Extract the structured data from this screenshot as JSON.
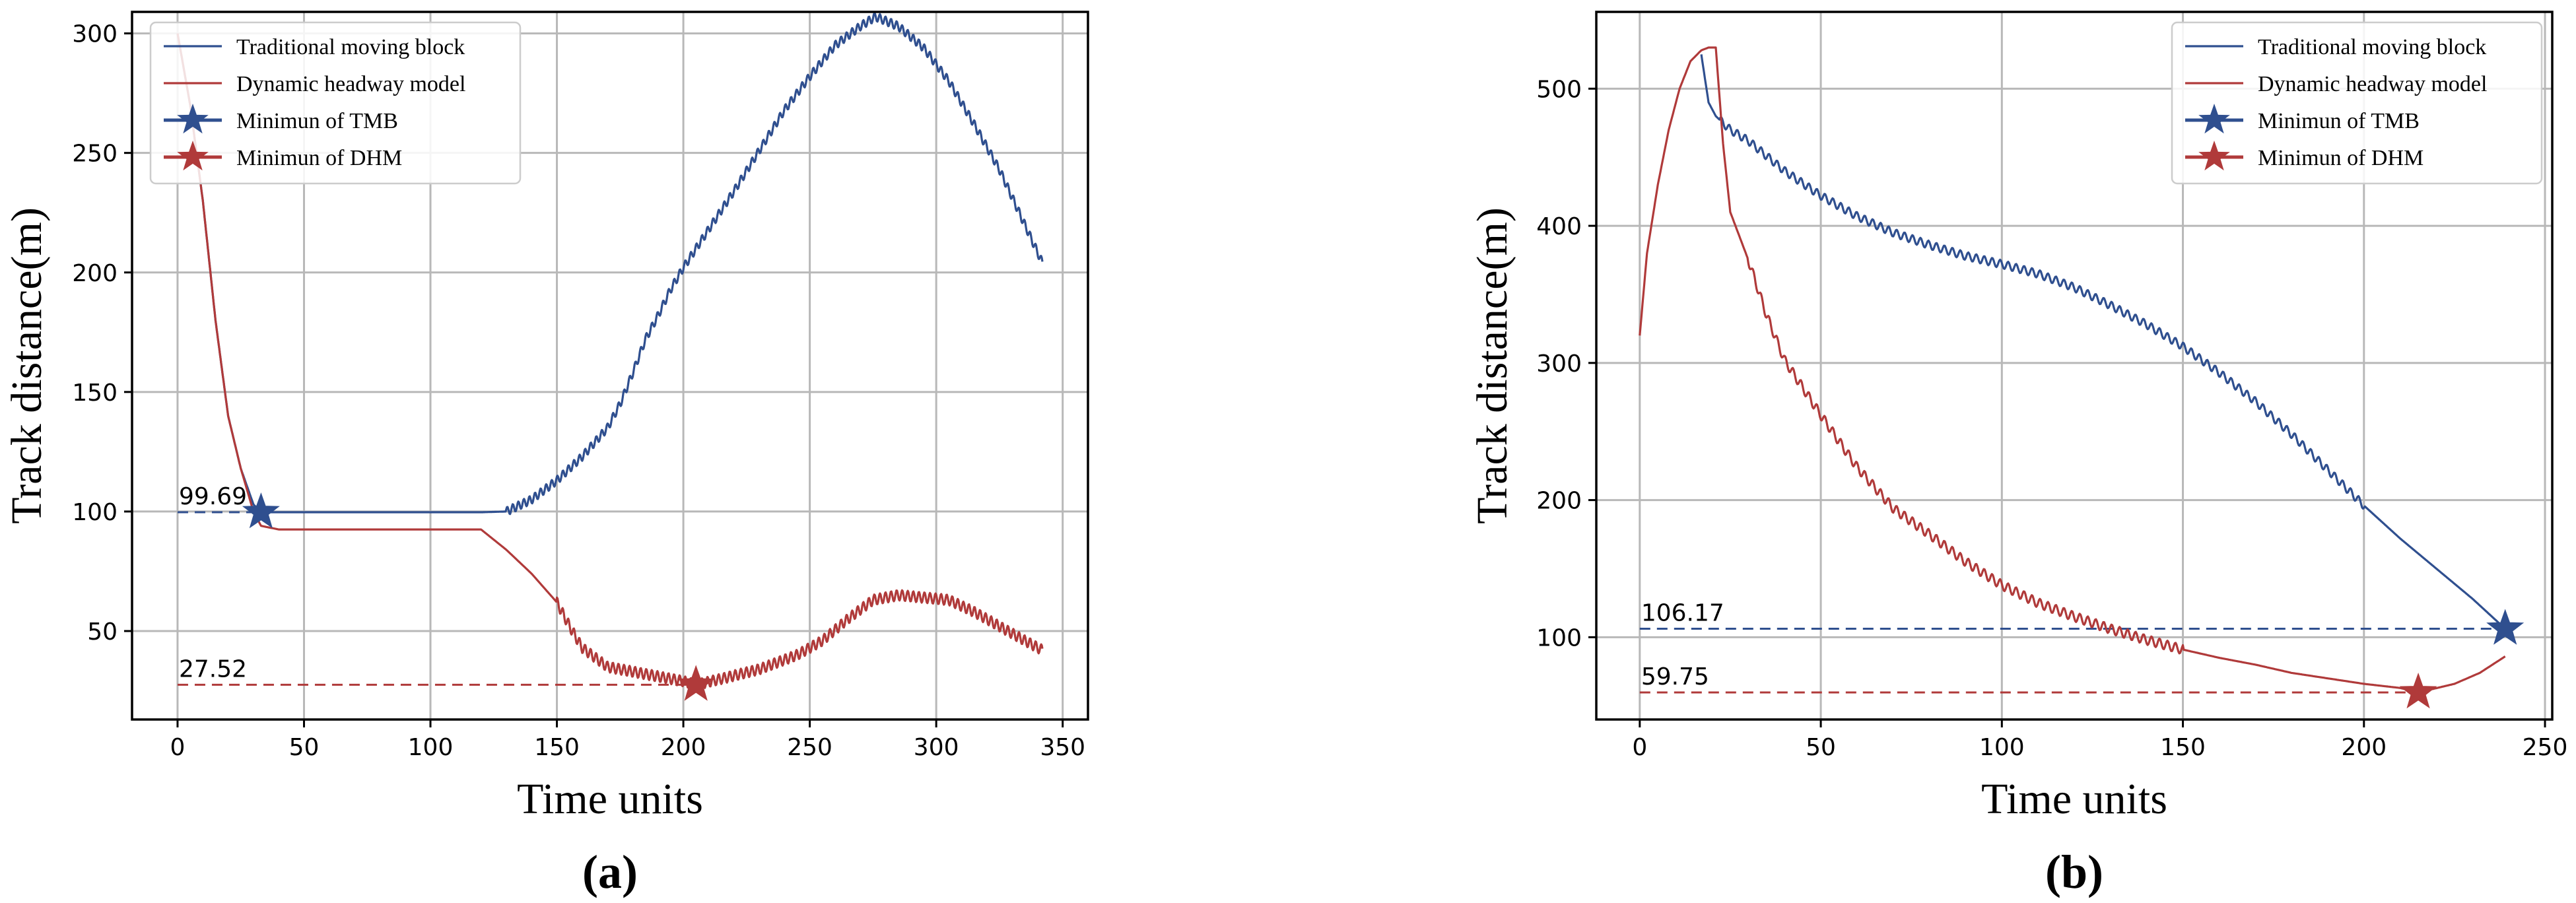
{
  "chart_data": [
    {
      "type": "line",
      "panel_label": "(a)",
      "xlabel": "Time units",
      "ylabel": "Track distance(m)",
      "xlim": [
        -18,
        360
      ],
      "ylim": [
        13,
        309
      ],
      "xticks": [
        0,
        50,
        100,
        150,
        200,
        250,
        300,
        350
      ],
      "yticks": [
        50,
        100,
        150,
        200,
        250,
        300
      ],
      "grid": true,
      "legend_position": "top-left",
      "legend": [
        "Traditional moving block",
        "Dynamic headway model",
        "Minimun of TMB",
        "Minimun of DHM"
      ],
      "colors": {
        "tmb": "#2f4f8f",
        "dhm": "#b03a3a"
      },
      "series": [
        {
          "name": "Traditional moving block",
          "color": "#2f4f8f",
          "x": [
            0,
            5,
            10,
            15,
            20,
            25,
            30,
            33,
            60,
            100,
            120,
            130,
            140,
            150,
            160,
            170,
            175,
            180,
            185,
            190,
            195,
            200,
            210,
            220,
            230,
            240,
            250,
            260,
            270,
            276,
            285,
            295,
            305,
            315,
            325,
            335,
            342
          ],
          "y": [
            300,
            270,
            230,
            180,
            140,
            118,
            103,
            99.69,
            99.69,
            99.69,
            99.69,
            100,
            105,
            113,
            123,
            135,
            145,
            158,
            172,
            182,
            193,
            202,
            218,
            234,
            251,
            268,
            282,
            295,
            303,
            307,
            303,
            294,
            280,
            262,
            243,
            220,
            204
          ],
          "oscillation": {
            "x_from": 130,
            "x_to": 342,
            "amplitude": 1.8
          }
        },
        {
          "name": "Dynamic headway model",
          "color": "#b03a3a",
          "x": [
            0,
            5,
            10,
            15,
            20,
            25,
            30,
            33,
            40,
            60,
            100,
            120,
            130,
            140,
            150,
            155,
            160,
            170,
            180,
            190,
            200,
            205,
            215,
            230,
            245,
            255,
            265,
            275,
            285,
            295,
            305,
            315,
            325,
            335,
            342
          ],
          "y": [
            300,
            270,
            230,
            180,
            140,
            118,
            100,
            94,
            92.5,
            92.5,
            92.5,
            92.5,
            84,
            74,
            62,
            52,
            43,
            35,
            33,
            31,
            29,
            27.52,
            30,
            34,
            40,
            46,
            55,
            63,
            65,
            64,
            63,
            58,
            52,
            46,
            42
          ],
          "oscillation": {
            "x_from": 150,
            "x_to": 342,
            "amplitude": 2.2
          }
        }
      ],
      "markers": [
        {
          "name": "Minimun of TMB",
          "x": 33,
          "y": 99.69,
          "label": "99.69",
          "color": "#2f4f8f"
        },
        {
          "name": "Minimun of DHM",
          "x": 205,
          "y": 27.52,
          "label": "27.52",
          "color": "#b03a3a"
        }
      ]
    },
    {
      "type": "line",
      "panel_label": "(b)",
      "xlabel": "Time units",
      "ylabel": "Track distance(m)",
      "xlim": [
        -12,
        252
      ],
      "ylim": [
        40,
        556
      ],
      "xticks": [
        0,
        50,
        100,
        150,
        200,
        250
      ],
      "yticks": [
        100,
        200,
        300,
        400,
        500
      ],
      "grid": true,
      "legend_position": "top-right",
      "legend": [
        "Traditional moving block",
        "Dynamic headway model",
        "Minimun of TMB",
        "Minimun of DHM"
      ],
      "colors": {
        "tmb": "#2f4f8f",
        "dhm": "#b03a3a"
      },
      "series": [
        {
          "name": "Traditional moving block",
          "color": "#2f4f8f",
          "x": [
            17,
            19,
            21,
            25,
            30,
            40,
            50,
            60,
            70,
            80,
            90,
            100,
            110,
            120,
            130,
            140,
            150,
            160,
            170,
            180,
            190,
            200,
            210,
            220,
            230,
            239
          ],
          "y": [
            525,
            490,
            480,
            470,
            462,
            440,
            422,
            407,
            395,
            386,
            378,
            372,
            365,
            355,
            342,
            328,
            312,
            293,
            272,
            248,
            222,
            196,
            172,
            150,
            128,
            106.17
          ],
          "oscillation": {
            "x_from": 22,
            "x_to": 200,
            "amplitude": 3
          }
        },
        {
          "name": "Dynamic headway model",
          "color": "#b03a3a",
          "x": [
            0,
            2,
            5,
            8,
            11,
            14,
            17,
            19,
            21,
            23,
            25,
            30,
            35,
            40,
            50,
            60,
            70,
            80,
            90,
            100,
            110,
            120,
            130,
            140,
            150,
            160,
            170,
            180,
            190,
            200,
            210,
            215,
            225,
            232,
            239
          ],
          "y": [
            320,
            380,
            430,
            470,
            500,
            520,
            528,
            530,
            530,
            460,
            410,
            375,
            335,
            302,
            262,
            224,
            194,
            175,
            155,
            138,
            125,
            115,
            106,
            98,
            91,
            85,
            80,
            74,
            70,
            66,
            63,
            59.75,
            66,
            74,
            86
          ],
          "oscillation": {
            "x_from": 30,
            "x_to": 150,
            "amplitude": 3.5
          }
        }
      ],
      "markers": [
        {
          "name": "Minimun of TMB",
          "x": 239,
          "y": 106.17,
          "label": "106.17",
          "color": "#2f4f8f"
        },
        {
          "name": "Minimun of DHM",
          "x": 215,
          "y": 59.75,
          "label": "59.75",
          "color": "#b03a3a"
        }
      ]
    }
  ]
}
